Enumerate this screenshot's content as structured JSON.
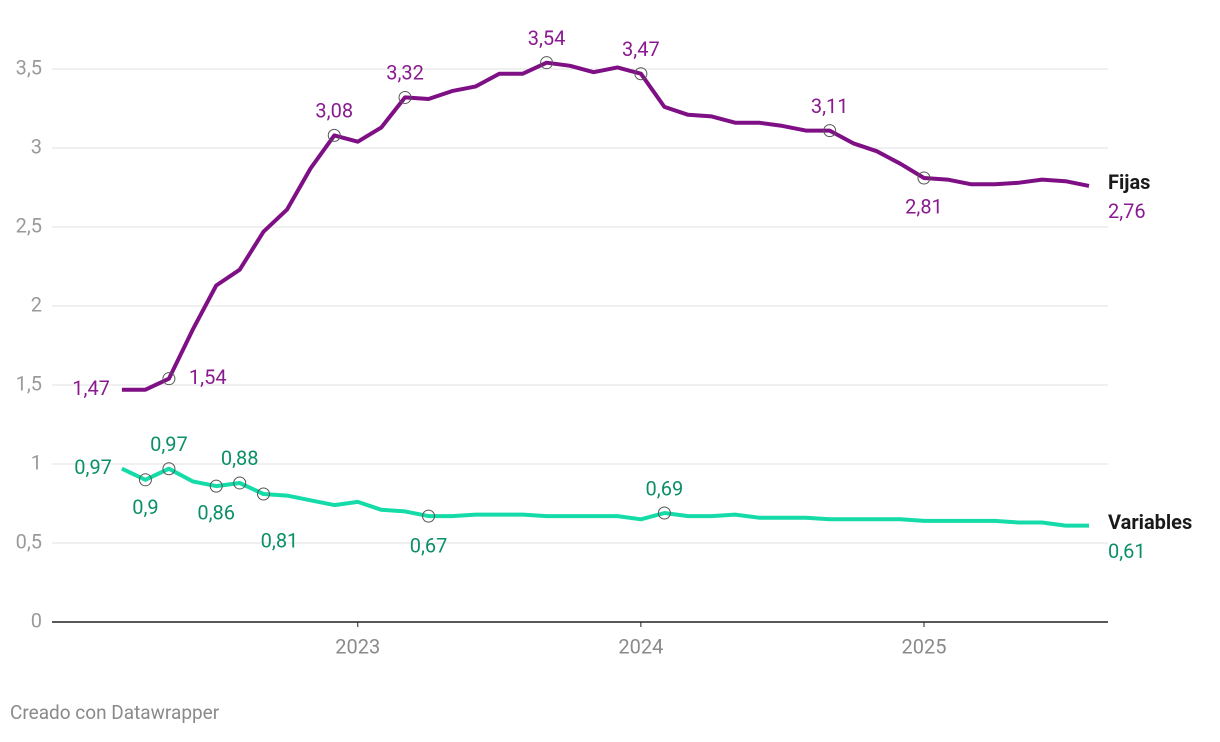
{
  "chart_data": {
    "type": "line",
    "source": "Creado con Datawrapper",
    "x": [
      2022.167,
      2022.25,
      2022.333,
      2022.417,
      2022.5,
      2022.583,
      2022.667,
      2022.75,
      2022.833,
      2022.917,
      2023.0,
      2023.083,
      2023.167,
      2023.25,
      2023.333,
      2023.417,
      2023.5,
      2023.583,
      2023.667,
      2023.75,
      2023.833,
      2023.917,
      2024.0,
      2024.083,
      2024.167,
      2024.25,
      2024.333,
      2024.417,
      2024.5,
      2024.583,
      2024.667,
      2024.75,
      2024.833,
      2024.917,
      2025.0,
      2025.083,
      2025.167,
      2025.25,
      2025.333,
      2025.417,
      2025.5,
      2025.583
    ],
    "xlim": [
      2021.92,
      2025.65
    ],
    "xticks": [
      2023,
      2024,
      2025
    ],
    "ylim": [
      0,
      3.5
    ],
    "yticks": [
      0,
      {
        "value": 0.5,
        "label": "0,5"
      },
      1,
      {
        "value": 1.5,
        "label": "1,5"
      },
      2,
      {
        "value": 2.5,
        "label": "2,5"
      },
      3,
      {
        "value": 3.5,
        "label": "3,5"
      }
    ],
    "grid": true,
    "series": [
      {
        "name": "Fijas",
        "color": "#7e0f84",
        "label_color": "#8a1a8f",
        "values": [
          1.47,
          1.47,
          1.54,
          1.85,
          2.13,
          2.23,
          2.47,
          2.61,
          2.87,
          3.08,
          3.04,
          3.13,
          3.32,
          3.31,
          3.36,
          3.39,
          3.47,
          3.47,
          3.54,
          3.52,
          3.48,
          3.51,
          3.47,
          3.26,
          3.21,
          3.2,
          3.16,
          3.16,
          3.14,
          3.11,
          3.11,
          3.03,
          2.98,
          2.9,
          2.81,
          2.8,
          2.77,
          2.77,
          2.78,
          2.8,
          2.79,
          2.76
        ],
        "value_labels": [
          "1,47",
          null,
          "1,54",
          null,
          null,
          null,
          null,
          null,
          null,
          "3,08",
          null,
          null,
          "3,32",
          null,
          null,
          null,
          null,
          null,
          "3,54",
          null,
          null,
          null,
          "3,47",
          null,
          null,
          null,
          null,
          null,
          null,
          null,
          "3,11",
          null,
          null,
          null,
          "2,81",
          null,
          null,
          null,
          null,
          null,
          null,
          "2,76"
        ]
      },
      {
        "name": "Variables",
        "color": "#15dba8",
        "label_color": "#0b8f68",
        "values": [
          0.97,
          0.9,
          0.97,
          0.89,
          0.86,
          0.88,
          0.81,
          0.8,
          0.77,
          0.74,
          0.76,
          0.71,
          0.7,
          0.67,
          0.67,
          0.68,
          0.68,
          0.68,
          0.67,
          0.67,
          0.67,
          0.67,
          0.65,
          0.69,
          0.67,
          0.67,
          0.68,
          0.66,
          0.66,
          0.66,
          0.65,
          0.65,
          0.65,
          0.65,
          0.64,
          0.64,
          0.64,
          0.64,
          0.63,
          0.63,
          0.61,
          0.61
        ],
        "value_labels": [
          "0,97",
          "0,9",
          "0,97",
          null,
          "0,86",
          "0,88",
          "0,81",
          null,
          null,
          null,
          null,
          null,
          null,
          "0,67",
          null,
          null,
          null,
          null,
          null,
          null,
          null,
          null,
          null,
          "0,69",
          null,
          null,
          null,
          null,
          null,
          null,
          null,
          null,
          null,
          null,
          null,
          null,
          null,
          null,
          null,
          null,
          null,
          "0,61"
        ]
      }
    ]
  }
}
